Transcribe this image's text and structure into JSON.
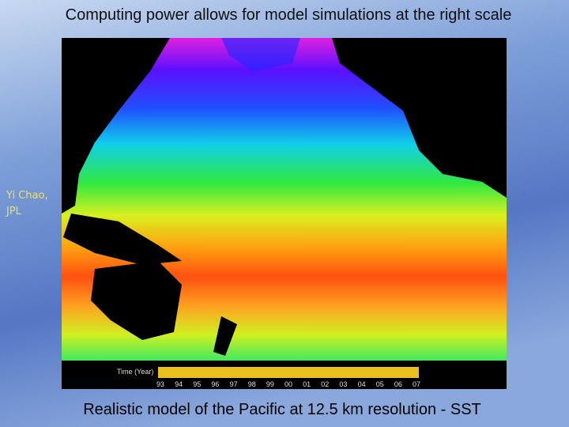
{
  "slide": {
    "title": "Computing power allows for model simulations at the right scale",
    "credit": "Yi Chao, JPL",
    "caption": "Realistic model of the Pacific at 12.5 km resolution - SST",
    "timebar": {
      "label": "Time (Year)",
      "years": [
        "93",
        "94",
        "95",
        "96",
        "97",
        "98",
        "99",
        "00",
        "01",
        "02",
        "03",
        "04",
        "05",
        "06",
        "07"
      ]
    }
  }
}
